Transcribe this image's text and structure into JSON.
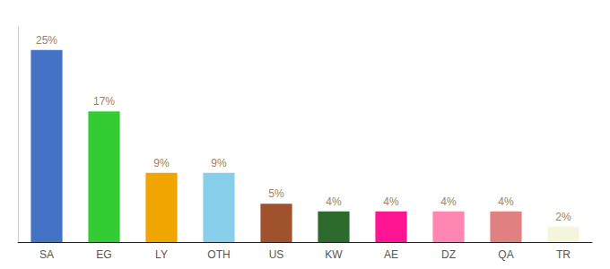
{
  "chart_data": {
    "type": "bar",
    "categories": [
      "SA",
      "EG",
      "LY",
      "OTH",
      "US",
      "KW",
      "AE",
      "DZ",
      "QA",
      "TR"
    ],
    "values": [
      25,
      17,
      9,
      9,
      5,
      4,
      4,
      4,
      4,
      2
    ],
    "value_labels": [
      "25%",
      "17%",
      "9%",
      "9%",
      "5%",
      "4%",
      "4%",
      "4%",
      "4%",
      "2%"
    ],
    "colors": [
      "#4472c4",
      "#33cc33",
      "#f0a500",
      "#87ceeb",
      "#a0522d",
      "#2d6a2d",
      "#ff1493",
      "#ff85b3",
      "#e08080",
      "#f5f5dc"
    ],
    "ylim": [
      0,
      28
    ],
    "data_labels": true,
    "tick_labels": "x",
    "grid": false
  }
}
